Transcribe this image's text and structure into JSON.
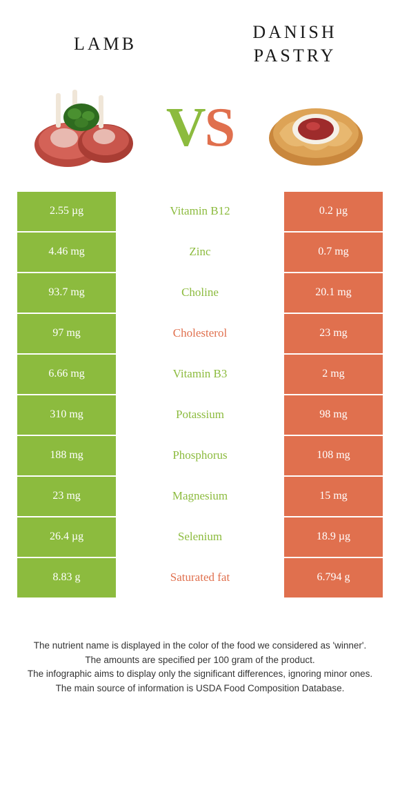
{
  "header": {
    "left_title": "Lamb",
    "right_title": "Danish pastry",
    "vs_v": "V",
    "vs_s": "S"
  },
  "colors": {
    "left": "#8cbb3e",
    "right": "#e0704e",
    "background": "#ffffff",
    "text": "#333333"
  },
  "table": {
    "rows": [
      {
        "left": "2.55 µg",
        "label": "Vitamin B12",
        "right": "0.2 µg",
        "winner": "left"
      },
      {
        "left": "4.46 mg",
        "label": "Zinc",
        "right": "0.7 mg",
        "winner": "left"
      },
      {
        "left": "93.7 mg",
        "label": "Choline",
        "right": "20.1 mg",
        "winner": "left"
      },
      {
        "left": "97 mg",
        "label": "Cholesterol",
        "right": "23 mg",
        "winner": "right"
      },
      {
        "left": "6.66 mg",
        "label": "Vitamin B3",
        "right": "2 mg",
        "winner": "left"
      },
      {
        "left": "310 mg",
        "label": "Potassium",
        "right": "98 mg",
        "winner": "left"
      },
      {
        "left": "188 mg",
        "label": "Phosphorus",
        "right": "108 mg",
        "winner": "left"
      },
      {
        "left": "23 mg",
        "label": "Magnesium",
        "right": "15 mg",
        "winner": "left"
      },
      {
        "left": "26.4 µg",
        "label": "Selenium",
        "right": "18.9 µg",
        "winner": "left"
      },
      {
        "left": "8.83 g",
        "label": "Saturated fat",
        "right": "6.794 g",
        "winner": "right"
      }
    ]
  },
  "footer": {
    "line1": "The nutrient name is displayed in the color of the food we considered as 'winner'.",
    "line2": "The amounts are specified per 100 gram of the product.",
    "line3": "The infographic aims to display only the significant differences, ignoring minor ones.",
    "line4": "The main source of information is USDA Food Composition Database."
  }
}
